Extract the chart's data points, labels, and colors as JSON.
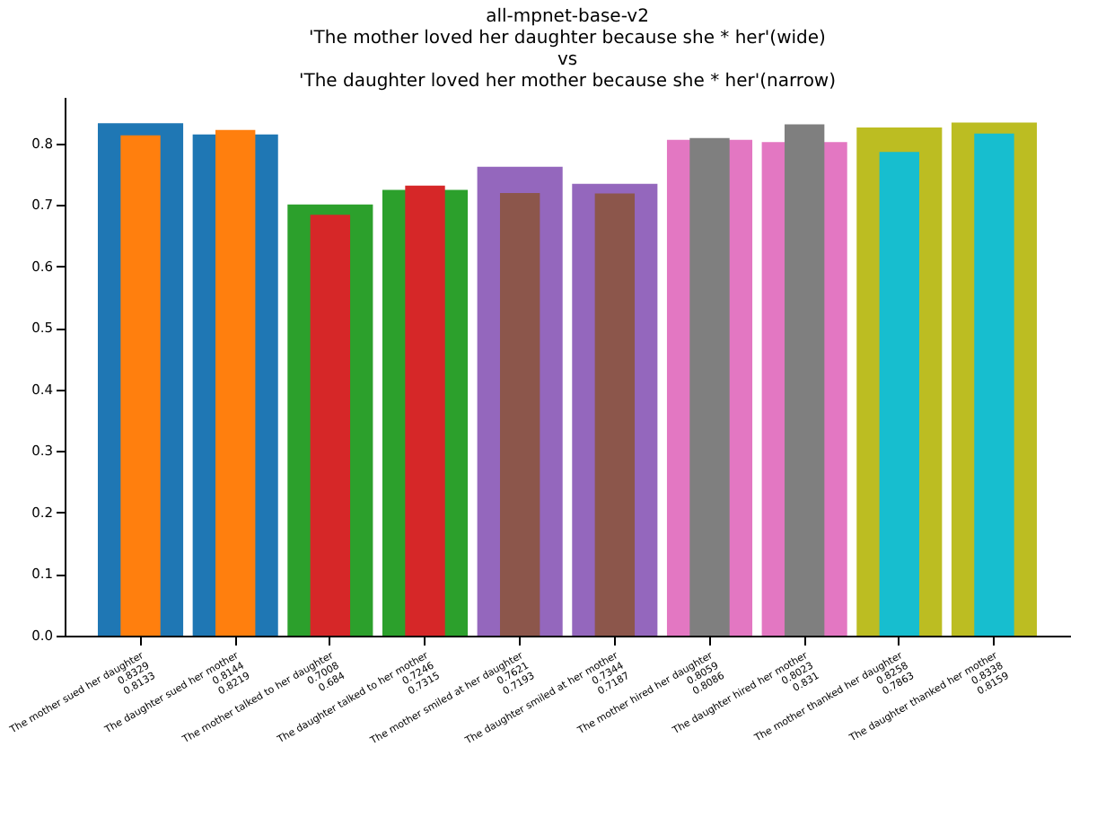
{
  "chart_data": {
    "type": "bar",
    "title": "all-mpnet-base-v2\n'The mother loved her daughter because she * her'(wide)\nvs\n'The daughter loved her mother because she * her'(narrow)",
    "categories": [
      "The mother sued her daughter",
      "The daughter sued her mother",
      "The mother talked to her daughter",
      "The daughter talked to her mother",
      "The mother smiled at her daughter",
      "The daughter smiled at her mother",
      "The mother hired her daughter",
      "The daughter hired her mother",
      "The mother thanked her daughter",
      "The daughter thanked her mother"
    ],
    "series": [
      {
        "colors": [
          "#1f77b4",
          "#1f77b4",
          "#2ca02c",
          "#2ca02c",
          "#9467bd",
          "#9467bd",
          "#e377c2",
          "#e377c2",
          "#bcbd22",
          "#bcbd22"
        ],
        "values": [
          0.8329,
          0.8144,
          0.7008,
          0.7246,
          0.7621,
          0.7344,
          0.8059,
          0.8023,
          0.8258,
          0.8338
        ]
      },
      {
        "colors": [
          "#ff7f0e",
          "#ff7f0e",
          "#d62728",
          "#d62728",
          "#8c564b",
          "#8c564b",
          "#7f7f7f",
          "#7f7f7f",
          "#17becf",
          "#17becf"
        ],
        "values": [
          0.8133,
          0.8219,
          0.684,
          0.7315,
          0.7193,
          0.7187,
          0.8086,
          0.831,
          0.7863,
          0.8159
        ]
      }
    ],
    "data_labels": true,
    "ylim": [
      0,
      0.8755
    ],
    "yticks": [
      {
        "value": 0,
        "label": "0.0"
      },
      0.1,
      0.2,
      0.3,
      0.4,
      0.5,
      0.6,
      0.7,
      0.8
    ],
    "grid": false
  }
}
